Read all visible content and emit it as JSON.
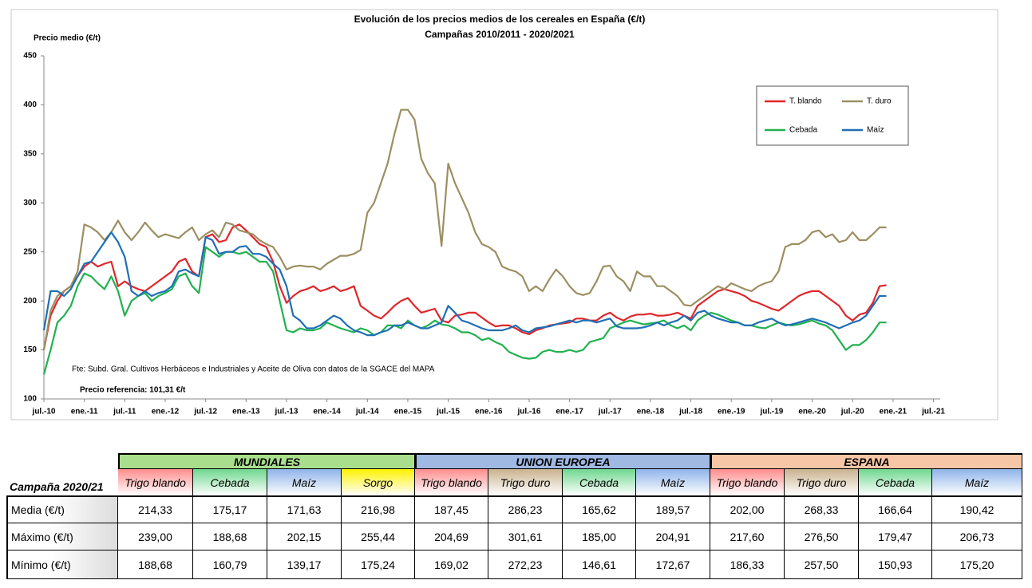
{
  "chart_data": {
    "type": "line",
    "title": "Evolución de los precios medios de los cereales en España (€/t)",
    "subtitle": "Campañas 2010/2011 - 2020/2021",
    "y_label": "Precio medio (€/t)",
    "annotations": [
      "Fte: Subd. Gral. Cultivos Herbáceos e Industriales y Aceite de Oliva con datos de la SGACE del MAPA",
      "Precio referencia: 101,31 €/t"
    ],
    "legend": "upper right",
    "grid": false,
    "xlim": [
      "2010-07",
      "2021-08"
    ],
    "xticks": [
      {
        "value": "2010-07",
        "label": "jul.-10"
      },
      {
        "value": "2011-01",
        "label": "ene.-11"
      },
      {
        "value": "2011-07",
        "label": "jul.-11"
      },
      {
        "value": "2012-01",
        "label": "ene.-12"
      },
      {
        "value": "2012-07",
        "label": "jul.-12"
      },
      {
        "value": "2013-01",
        "label": "ene.-13"
      },
      {
        "value": "2013-07",
        "label": "jul.-13"
      },
      {
        "value": "2014-01",
        "label": "ene.-14"
      },
      {
        "value": "2014-07",
        "label": "jul.-14"
      },
      {
        "value": "2015-01",
        "label": "ene.-15"
      },
      {
        "value": "2015-07",
        "label": "jul.-15"
      },
      {
        "value": "2016-01",
        "label": "ene.-16"
      },
      {
        "value": "2016-07",
        "label": "jul.-16"
      },
      {
        "value": "2017-01",
        "label": "ene.-17"
      },
      {
        "value": "2017-07",
        "label": "jul.-17"
      },
      {
        "value": "2018-01",
        "label": "ene.-18"
      },
      {
        "value": "2018-07",
        "label": "jul.-18"
      },
      {
        "value": "2019-01",
        "label": "ene.-19"
      },
      {
        "value": "2019-07",
        "label": "jul.-19"
      },
      {
        "value": "2020-01",
        "label": "ene.-20"
      },
      {
        "value": "2020-07",
        "label": "jul.-20"
      },
      {
        "value": "2021-01",
        "label": "ene.-21"
      },
      {
        "value": "2021-07",
        "label": "jul.-21"
      }
    ],
    "ylim": [
      100,
      450
    ],
    "yticks": [
      100,
      150,
      200,
      250,
      300,
      350,
      400,
      450
    ],
    "x": [
      "2010-07",
      "2010-08",
      "2010-09",
      "2010-10",
      "2010-11",
      "2010-12",
      "2011-01",
      "2011-02",
      "2011-03",
      "2011-04",
      "2011-05",
      "2011-06",
      "2011-07",
      "2011-08",
      "2011-09",
      "2011-10",
      "2011-11",
      "2011-12",
      "2012-01",
      "2012-02",
      "2012-03",
      "2012-04",
      "2012-05",
      "2012-06",
      "2012-07",
      "2012-08",
      "2012-09",
      "2012-10",
      "2012-11",
      "2012-12",
      "2013-01",
      "2013-02",
      "2013-03",
      "2013-04",
      "2013-05",
      "2013-06",
      "2013-07",
      "2013-08",
      "2013-09",
      "2013-10",
      "2013-11",
      "2013-12",
      "2014-01",
      "2014-02",
      "2014-03",
      "2014-04",
      "2014-05",
      "2014-06",
      "2014-07",
      "2014-08",
      "2014-09",
      "2014-10",
      "2014-11",
      "2014-12",
      "2015-01",
      "2015-02",
      "2015-03",
      "2015-04",
      "2015-05",
      "2015-06",
      "2015-07",
      "2015-08",
      "2015-09",
      "2015-10",
      "2015-11",
      "2015-12",
      "2016-01",
      "2016-02",
      "2016-03",
      "2016-04",
      "2016-05",
      "2016-06",
      "2016-07",
      "2016-08",
      "2016-09",
      "2016-10",
      "2016-11",
      "2016-12",
      "2017-01",
      "2017-02",
      "2017-03",
      "2017-04",
      "2017-05",
      "2017-06",
      "2017-07",
      "2017-08",
      "2017-09",
      "2017-10",
      "2017-11",
      "2017-12",
      "2018-01",
      "2018-02",
      "2018-03",
      "2018-04",
      "2018-05",
      "2018-06",
      "2018-07",
      "2018-08",
      "2018-09",
      "2018-10",
      "2018-11",
      "2018-12",
      "2019-01",
      "2019-02",
      "2019-03",
      "2019-04",
      "2019-05",
      "2019-06",
      "2019-07",
      "2019-08",
      "2019-09",
      "2019-10",
      "2019-11",
      "2019-12",
      "2020-01",
      "2020-02",
      "2020-03",
      "2020-04",
      "2020-05",
      "2020-06",
      "2020-07",
      "2020-08",
      "2020-09",
      "2020-10",
      "2020-11",
      "2020-12"
    ],
    "series": [
      {
        "name": "T. blando",
        "color": "#e0262b",
        "values": [
          150,
          185,
          200,
          210,
          215,
          225,
          235,
          240,
          235,
          238,
          240,
          215,
          220,
          215,
          212,
          210,
          215,
          220,
          225,
          230,
          240,
          243,
          230,
          225,
          265,
          268,
          260,
          262,
          275,
          278,
          272,
          265,
          258,
          255,
          240,
          215,
          198,
          205,
          210,
          212,
          215,
          210,
          212,
          215,
          210,
          212,
          215,
          195,
          190,
          185,
          182,
          188,
          195,
          200,
          203,
          195,
          188,
          190,
          192,
          180,
          178,
          185,
          186,
          188,
          188,
          183,
          178,
          174,
          175,
          175,
          172,
          168,
          166,
          170,
          172,
          175,
          176,
          177,
          178,
          182,
          182,
          180,
          180,
          185,
          188,
          183,
          180,
          184,
          186,
          186,
          187,
          185,
          185,
          186,
          188,
          185,
          182,
          195,
          200,
          205,
          210,
          212,
          210,
          208,
          205,
          200,
          198,
          195,
          192,
          190,
          195,
          200,
          205,
          208,
          210,
          210,
          205,
          200,
          195,
          185,
          180,
          186,
          188,
          198,
          215,
          216
        ]
      },
      {
        "name": "T. duro",
        "color": "#9c8f62",
        "values": [
          150,
          190,
          205,
          210,
          215,
          230,
          278,
          275,
          270,
          262,
          270,
          282,
          270,
          262,
          270,
          280,
          272,
          265,
          268,
          266,
          264,
          270,
          275,
          262,
          268,
          272,
          265,
          280,
          278,
          272,
          270,
          268,
          262,
          258,
          255,
          245,
          232,
          235,
          236,
          235,
          235,
          232,
          238,
          242,
          246,
          246,
          248,
          252,
          290,
          300,
          320,
          340,
          370,
          395,
          395,
          385,
          345,
          330,
          320,
          256,
          340,
          320,
          305,
          290,
          270,
          258,
          255,
          250,
          235,
          232,
          230,
          225,
          210,
          215,
          210,
          222,
          232,
          225,
          215,
          208,
          206,
          208,
          220,
          235,
          236,
          225,
          220,
          210,
          230,
          225,
          225,
          215,
          215,
          210,
          205,
          196,
          195,
          200,
          205,
          210,
          215,
          212,
          218,
          215,
          212,
          210,
          215,
          218,
          220,
          230,
          255,
          258,
          258,
          262,
          270,
          272,
          265,
          268,
          260,
          262,
          270,
          262,
          262,
          268,
          275,
          275
        ]
      },
      {
        "name": "Cebada",
        "color": "#21b14f",
        "values": [
          125,
          150,
          178,
          185,
          195,
          215,
          228,
          225,
          218,
          212,
          225,
          210,
          185,
          200,
          205,
          208,
          200,
          205,
          208,
          212,
          225,
          228,
          215,
          208,
          255,
          250,
          245,
          250,
          250,
          248,
          250,
          245,
          240,
          240,
          230,
          200,
          170,
          168,
          172,
          170,
          170,
          172,
          178,
          175,
          172,
          170,
          168,
          172,
          170,
          165,
          168,
          175,
          175,
          172,
          180,
          175,
          172,
          175,
          180,
          176,
          175,
          172,
          168,
          168,
          165,
          160,
          162,
          158,
          155,
          148,
          145,
          142,
          141,
          142,
          148,
          150,
          148,
          148,
          150,
          148,
          150,
          158,
          160,
          162,
          172,
          175,
          178,
          180,
          178,
          176,
          177,
          178,
          180,
          175,
          172,
          175,
          170,
          180,
          185,
          188,
          186,
          183,
          180,
          178,
          175,
          175,
          173,
          172,
          175,
          178,
          176,
          175,
          176,
          178,
          180,
          177,
          175,
          170,
          160,
          150,
          155,
          155,
          160,
          168,
          178,
          178
        ]
      },
      {
        "name": "Maíz",
        "color": "#1f6fb5",
        "values": [
          170,
          210,
          210,
          205,
          212,
          225,
          238,
          240,
          250,
          260,
          270,
          260,
          245,
          210,
          205,
          210,
          205,
          208,
          210,
          215,
          230,
          232,
          228,
          225,
          265,
          262,
          248,
          250,
          250,
          255,
          256,
          248,
          248,
          245,
          238,
          232,
          215,
          185,
          180,
          172,
          172,
          175,
          180,
          185,
          182,
          175,
          170,
          168,
          165,
          165,
          168,
          170,
          175,
          175,
          178,
          175,
          172,
          172,
          175,
          178,
          195,
          188,
          180,
          178,
          175,
          172,
          170,
          170,
          170,
          172,
          175,
          170,
          168,
          172,
          173,
          174,
          176,
          178,
          180,
          178,
          180,
          180,
          178,
          180,
          182,
          174,
          172,
          172,
          172,
          173,
          175,
          178,
          175,
          178,
          180,
          185,
          180,
          188,
          190,
          185,
          182,
          180,
          178,
          178,
          175,
          175,
          178,
          180,
          182,
          178,
          175,
          176,
          178,
          180,
          182,
          180,
          178,
          175,
          172,
          175,
          178,
          180,
          185,
          195,
          205,
          205
        ]
      }
    ]
  },
  "table": {
    "corner": "Campaña 2020/21",
    "groups": [
      {
        "name": "MUNDIALES",
        "color": "#a9df8c",
        "columns": [
          {
            "name": "Trigo blando",
            "color": "#ff8d8d"
          },
          {
            "name": "Cebada",
            "color": "#6fd78f"
          },
          {
            "name": "Maíz",
            "color": "#8fb4ea"
          },
          {
            "name": "Sorgo",
            "color": "#fff200"
          }
        ]
      },
      {
        "name": "UNION EUROPEA",
        "color": "#9fb9e3",
        "columns": [
          {
            "name": "Trigo blando",
            "color": "#ff8d8d"
          },
          {
            "name": "Trigo duro",
            "color": "#c9b28f"
          },
          {
            "name": "Cebada",
            "color": "#6fd78f"
          },
          {
            "name": "Maíz",
            "color": "#8fb4ea"
          }
        ]
      },
      {
        "name": "ESPANA",
        "color": "#f7c6a6",
        "columns": [
          {
            "name": "Trigo blando",
            "color": "#ff8d8d"
          },
          {
            "name": "Trigo duro",
            "color": "#c9b28f"
          },
          {
            "name": "Cebada",
            "color": "#6fd78f"
          },
          {
            "name": "Maíz",
            "color": "#8fb4ea"
          }
        ]
      }
    ],
    "rows": [
      {
        "label": "Media (€/t)",
        "values": [
          "214,33",
          "175,17",
          "171,63",
          "216,98",
          "187,45",
          "286,23",
          "165,62",
          "189,57",
          "202,00",
          "268,33",
          "166,64",
          "190,42"
        ]
      },
      {
        "label": "Máximo (€/t)",
        "values": [
          "239,00",
          "188,68",
          "202,15",
          "255,44",
          "204,69",
          "301,61",
          "185,00",
          "204,91",
          "217,60",
          "276,50",
          "179,47",
          "206,73"
        ]
      },
      {
        "label": "Mínimo (€/t)",
        "values": [
          "188,68",
          "160,79",
          "139,17",
          "175,24",
          "169,02",
          "272,23",
          "146,61",
          "172,67",
          "186,33",
          "257,50",
          "150,93",
          "175,20"
        ]
      }
    ]
  }
}
